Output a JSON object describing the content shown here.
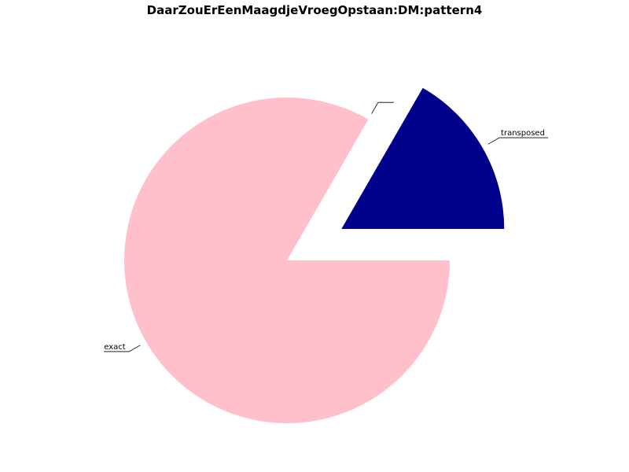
{
  "chart_data": {
    "type": "pie",
    "title": "DaarZouErEenMaagdjeVroegOpstaan:DM:pattern4",
    "slices": [
      {
        "label": "transposed",
        "value": 16.67,
        "color": "#00008b",
        "exploded": true
      },
      {
        "label": "",
        "value": 0.0,
        "color": "#ffffff",
        "exploded": false
      },
      {
        "label": "exact",
        "value": 83.33,
        "color": "#ffc0cb",
        "exploded": false
      }
    ],
    "start_angle_deg": 0,
    "direction": "counterclockwise",
    "legend": false
  }
}
